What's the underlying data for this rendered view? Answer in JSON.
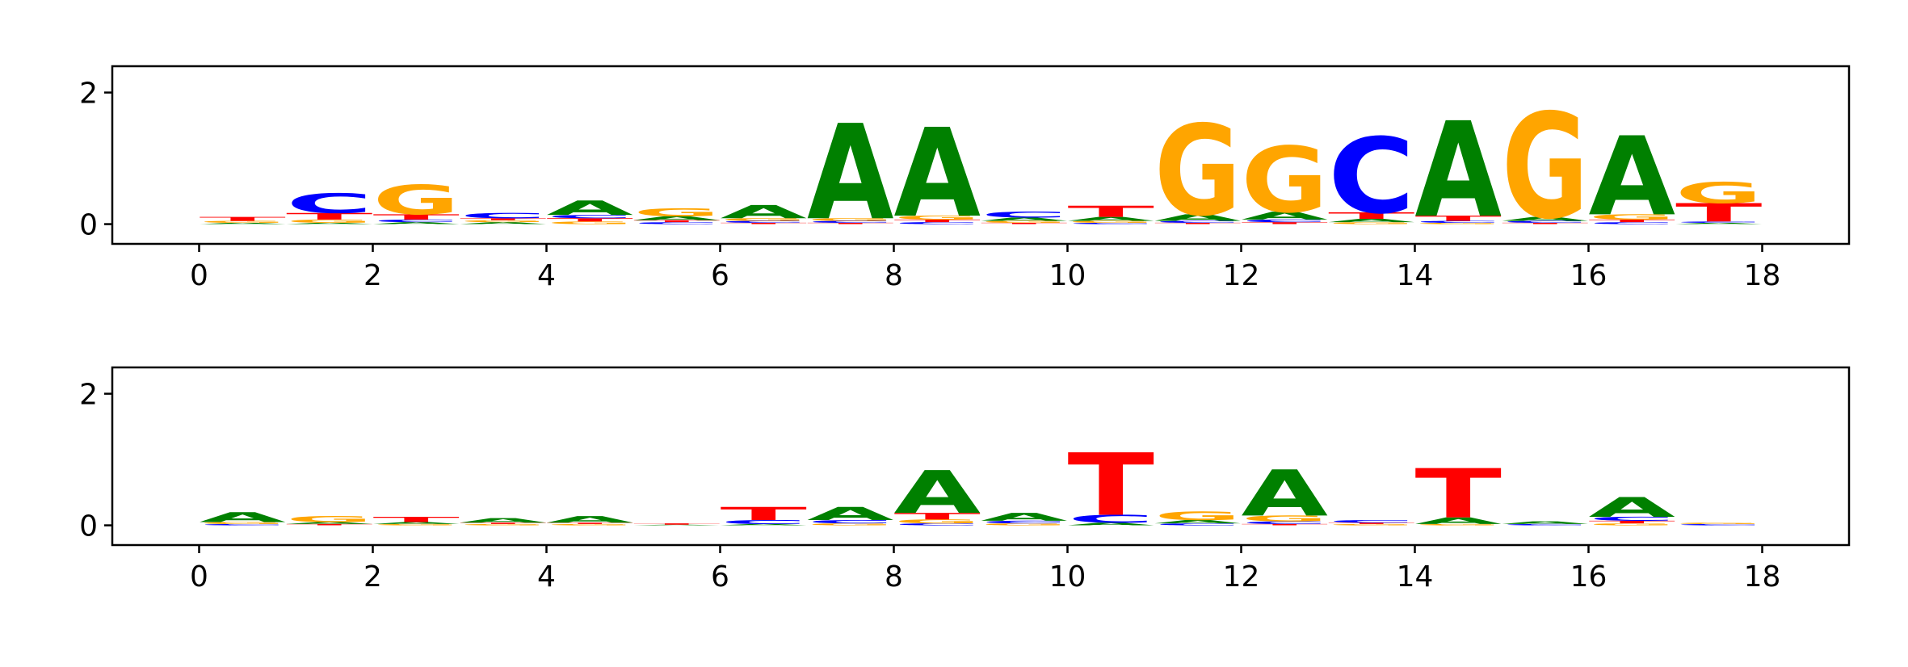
{
  "colors": {
    "A": "#008000",
    "C": "#0000ff",
    "G": "#ffa500",
    "T": "#ff0000"
  },
  "chart_data": [
    {
      "type": "sequence-logo",
      "xlim": [
        -1,
        19
      ],
      "ylim": [
        -0.3,
        2.4
      ],
      "xticks": [
        0,
        2,
        4,
        6,
        8,
        10,
        12,
        14,
        16,
        18
      ],
      "yticks": [
        0,
        2
      ],
      "positions": [
        {
          "x": 0,
          "letters": [
            {
              "base": "A",
              "height": 0.02
            },
            {
              "base": "G",
              "height": 0.03
            },
            {
              "base": "T",
              "height": 0.06
            }
          ]
        },
        {
          "x": 1,
          "letters": [
            {
              "base": "A",
              "height": 0.02
            },
            {
              "base": "G",
              "height": 0.05
            },
            {
              "base": "T",
              "height": 0.1
            },
            {
              "base": "C",
              "height": 0.3
            }
          ]
        },
        {
          "x": 2,
          "letters": [
            {
              "base": "A",
              "height": 0.03
            },
            {
              "base": "C",
              "height": 0.04
            },
            {
              "base": "T",
              "height": 0.08
            },
            {
              "base": "G",
              "height": 0.45
            }
          ]
        },
        {
          "x": 3,
          "letters": [
            {
              "base": "A",
              "height": 0.03
            },
            {
              "base": "G",
              "height": 0.03
            },
            {
              "base": "T",
              "height": 0.03
            },
            {
              "base": "C",
              "height": 0.08
            }
          ]
        },
        {
          "x": 4,
          "letters": [
            {
              "base": "G",
              "height": 0.04
            },
            {
              "base": "T",
              "height": 0.05
            },
            {
              "base": "C",
              "height": 0.05
            },
            {
              "base": "A",
              "height": 0.22
            }
          ]
        },
        {
          "x": 5,
          "letters": [
            {
              "base": "C",
              "height": 0.03
            },
            {
              "base": "T",
              "height": 0.03
            },
            {
              "base": "A",
              "height": 0.06
            },
            {
              "base": "G",
              "height": 0.12
            }
          ]
        },
        {
          "x": 6,
          "letters": [
            {
              "base": "T",
              "height": 0.02
            },
            {
              "base": "C",
              "height": 0.03
            },
            {
              "base": "G",
              "height": 0.04
            },
            {
              "base": "A",
              "height": 0.2
            }
          ]
        },
        {
          "x": 7,
          "letters": [
            {
              "base": "T",
              "height": 0.02
            },
            {
              "base": "C",
              "height": 0.03
            },
            {
              "base": "G",
              "height": 0.04
            },
            {
              "base": "A",
              "height": 1.45
            }
          ]
        },
        {
          "x": 8,
          "letters": [
            {
              "base": "C",
              "height": 0.03
            },
            {
              "base": "T",
              "height": 0.04
            },
            {
              "base": "G",
              "height": 0.06
            },
            {
              "base": "A",
              "height": 1.35
            }
          ]
        },
        {
          "x": 9,
          "letters": [
            {
              "base": "T",
              "height": 0.02
            },
            {
              "base": "G",
              "height": 0.03
            },
            {
              "base": "A",
              "height": 0.05
            },
            {
              "base": "C",
              "height": 0.09
            }
          ]
        },
        {
          "x": 10,
          "letters": [
            {
              "base": "C",
              "height": 0.02
            },
            {
              "base": "G",
              "height": 0.03
            },
            {
              "base": "A",
              "height": 0.06
            },
            {
              "base": "T",
              "height": 0.17
            }
          ]
        },
        {
          "x": 11,
          "letters": [
            {
              "base": "T",
              "height": 0.02
            },
            {
              "base": "C",
              "height": 0.03
            },
            {
              "base": "A",
              "height": 0.1
            },
            {
              "base": "G",
              "height": 1.38
            }
          ]
        },
        {
          "x": 12,
          "letters": [
            {
              "base": "T",
              "height": 0.03
            },
            {
              "base": "C",
              "height": 0.04
            },
            {
              "base": "A",
              "height": 0.12
            },
            {
              "base": "G",
              "height": 1.0
            }
          ]
        },
        {
          "x": 13,
          "letters": [
            {
              "base": "G",
              "height": 0.03
            },
            {
              "base": "A",
              "height": 0.05
            },
            {
              "base": "T",
              "height": 0.1
            },
            {
              "base": "C",
              "height": 1.15
            }
          ]
        },
        {
          "x": 14,
          "letters": [
            {
              "base": "G",
              "height": 0.02
            },
            {
              "base": "C",
              "height": 0.03
            },
            {
              "base": "T",
              "height": 0.08
            },
            {
              "base": "A",
              "height": 1.45
            }
          ]
        },
        {
          "x": 15,
          "letters": [
            {
              "base": "T",
              "height": 0.02
            },
            {
              "base": "C",
              "height": 0.03
            },
            {
              "base": "A",
              "height": 0.06
            },
            {
              "base": "G",
              "height": 1.6
            }
          ]
        },
        {
          "x": 16,
          "letters": [
            {
              "base": "C",
              "height": 0.03
            },
            {
              "base": "T",
              "height": 0.04
            },
            {
              "base": "G",
              "height": 0.08
            },
            {
              "base": "A",
              "height": 1.2
            }
          ]
        },
        {
          "x": 17,
          "letters": [
            {
              "base": "A",
              "height": 0.02
            },
            {
              "base": "C",
              "height": 0.02
            },
            {
              "base": "T",
              "height": 0.28
            },
            {
              "base": "G",
              "height": 0.32
            }
          ]
        }
      ]
    },
    {
      "type": "sequence-logo",
      "xlim": [
        -1,
        19
      ],
      "ylim": [
        -0.3,
        2.4
      ],
      "xticks": [
        0,
        2,
        4,
        6,
        8,
        10,
        12,
        14,
        16,
        18
      ],
      "yticks": [
        0,
        2
      ],
      "positions": [
        {
          "x": 0,
          "letters": [
            {
              "base": "C",
              "height": 0.02
            },
            {
              "base": "G",
              "height": 0.03
            },
            {
              "base": "A",
              "height": 0.15
            }
          ]
        },
        {
          "x": 1,
          "letters": [
            {
              "base": "T",
              "height": 0.02
            },
            {
              "base": "A",
              "height": 0.03
            },
            {
              "base": "G",
              "height": 0.09
            }
          ]
        },
        {
          "x": 2,
          "letters": [
            {
              "base": "G",
              "height": 0.02
            },
            {
              "base": "A",
              "height": 0.03
            },
            {
              "base": "T",
              "height": 0.08
            }
          ]
        },
        {
          "x": 3,
          "letters": [
            {
              "base": "G",
              "height": 0.02
            },
            {
              "base": "T",
              "height": 0.02
            },
            {
              "base": "A",
              "height": 0.07
            }
          ]
        },
        {
          "x": 4,
          "letters": [
            {
              "base": "G",
              "height": 0.02
            },
            {
              "base": "T",
              "height": 0.02
            },
            {
              "base": "A",
              "height": 0.1
            }
          ]
        },
        {
          "x": 5,
          "letters": [
            {
              "base": "A",
              "height": 0.01
            },
            {
              "base": "T",
              "height": 0.02
            }
          ]
        },
        {
          "x": 6,
          "letters": [
            {
              "base": "A",
              "height": 0.02
            },
            {
              "base": "C",
              "height": 0.06
            },
            {
              "base": "T",
              "height": 0.2
            }
          ]
        },
        {
          "x": 7,
          "letters": [
            {
              "base": "G",
              "height": 0.03
            },
            {
              "base": "C",
              "height": 0.05
            },
            {
              "base": "A",
              "height": 0.2
            }
          ]
        },
        {
          "x": 8,
          "letters": [
            {
              "base": "C",
              "height": 0.03
            },
            {
              "base": "G",
              "height": 0.06
            },
            {
              "base": "T",
              "height": 0.1
            },
            {
              "base": "A",
              "height": 0.65
            }
          ]
        },
        {
          "x": 9,
          "letters": [
            {
              "base": "G",
              "height": 0.03
            },
            {
              "base": "C",
              "height": 0.04
            },
            {
              "base": "A",
              "height": 0.12
            }
          ]
        },
        {
          "x": 10,
          "letters": [
            {
              "base": "A",
              "height": 0.04
            },
            {
              "base": "C",
              "height": 0.12
            },
            {
              "base": "T",
              "height": 0.95
            }
          ]
        },
        {
          "x": 11,
          "letters": [
            {
              "base": "C",
              "height": 0.03
            },
            {
              "base": "A",
              "height": 0.05
            },
            {
              "base": "G",
              "height": 0.13
            }
          ]
        },
        {
          "x": 12,
          "letters": [
            {
              "base": "T",
              "height": 0.02
            },
            {
              "base": "C",
              "height": 0.04
            },
            {
              "base": "G",
              "height": 0.09
            },
            {
              "base": "A",
              "height": 0.7
            }
          ]
        },
        {
          "x": 13,
          "letters": [
            {
              "base": "G",
              "height": 0.02
            },
            {
              "base": "T",
              "height": 0.02
            },
            {
              "base": "C",
              "height": 0.04
            }
          ]
        },
        {
          "x": 14,
          "letters": [
            {
              "base": "G",
              "height": 0.02
            },
            {
              "base": "A",
              "height": 0.1
            },
            {
              "base": "T",
              "height": 0.75
            }
          ]
        },
        {
          "x": 15,
          "letters": [
            {
              "base": "C",
              "height": 0.02
            },
            {
              "base": "A",
              "height": 0.04
            }
          ]
        },
        {
          "x": 16,
          "letters": [
            {
              "base": "G",
              "height": 0.03
            },
            {
              "base": "T",
              "height": 0.04
            },
            {
              "base": "C",
              "height": 0.06
            },
            {
              "base": "A",
              "height": 0.3
            }
          ]
        },
        {
          "x": 17,
          "letters": [
            {
              "base": "C",
              "height": 0.02
            },
            {
              "base": "G",
              "height": 0.02
            }
          ]
        }
      ]
    }
  ]
}
